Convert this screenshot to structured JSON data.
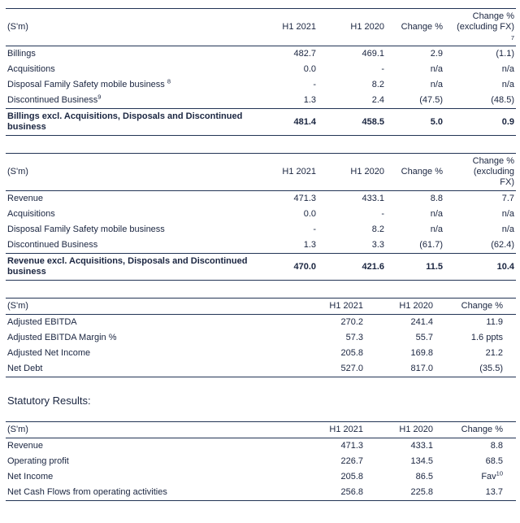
{
  "page": {
    "statutory_heading": "Statutory Results:"
  },
  "colors": {
    "text": "#1a2540",
    "border": "#223455"
  },
  "tables": [
    {
      "name": "billings-table",
      "columns": [
        {
          "lines": [
            "(S'm)"
          ]
        },
        {
          "lines": [
            "H1 2021"
          ]
        },
        {
          "lines": [
            "H1 2020"
          ]
        },
        {
          "lines": [
            "Change %"
          ]
        },
        {
          "lines": [
            "Change %",
            "(excluding FX)",
            "^7"
          ]
        }
      ],
      "rows": [
        {
          "label": "Billings",
          "values": [
            "482.7",
            "469.1",
            "2.9",
            "(1.1)"
          ]
        },
        {
          "label": "Acquisitions",
          "values": [
            "0.0",
            "-",
            "n/a",
            "n/a"
          ]
        },
        {
          "label": "Disposal Family Safety mobile business ^8",
          "values": [
            "-",
            "8.2",
            "n/a",
            "n/a"
          ]
        },
        {
          "label": "Discontinued Business^9",
          "values": [
            "1.3",
            "2.4",
            "(47.5)",
            "(48.5)"
          ]
        },
        {
          "label": "Billings excl. Acquisitions, Disposals and Discontinued business",
          "values": [
            "481.4",
            "458.5",
            "5.0",
            "0.9"
          ],
          "bold": true
        }
      ]
    },
    {
      "name": "revenue-table",
      "columns": [
        {
          "lines": [
            "(S'm)"
          ]
        },
        {
          "lines": [
            "H1 2021"
          ]
        },
        {
          "lines": [
            "H1 2020"
          ]
        },
        {
          "lines": [
            "Change %"
          ]
        },
        {
          "lines": [
            "Change %",
            "(excluding",
            "FX)"
          ]
        }
      ],
      "rows": [
        {
          "label": "Revenue",
          "values": [
            "471.3",
            "433.1",
            "8.8",
            "7.7"
          ]
        },
        {
          "label": "Acquisitions",
          "values": [
            "0.0",
            "-",
            "n/a",
            "n/a"
          ]
        },
        {
          "label": "Disposal Family Safety mobile business",
          "values": [
            "-",
            "8.2",
            "n/a",
            "n/a"
          ]
        },
        {
          "label": "Discontinued Business",
          "values": [
            "1.3",
            "3.3",
            "(61.7)",
            "(62.4)"
          ]
        },
        {
          "label": "Revenue excl. Acquisitions, Disposals and Discontinued business",
          "values": [
            "470.0",
            "421.6",
            "11.5",
            "10.4"
          ],
          "bold": true
        }
      ]
    },
    {
      "name": "adjusted-results-table",
      "columns": [
        {
          "lines": [
            "(S'm)"
          ]
        },
        {
          "lines": [
            "H1 2021"
          ]
        },
        {
          "lines": [
            "H1 2020"
          ]
        },
        {
          "lines": [
            "Change %"
          ]
        }
      ],
      "rows": [
        {
          "label": "Adjusted EBITDA",
          "values": [
            "270.2",
            "241.4",
            "11.9"
          ]
        },
        {
          "label": "Adjusted EBITDA Margin %",
          "values": [
            "57.3",
            "55.7",
            "1.6 ppts"
          ]
        },
        {
          "label": "Adjusted Net Income",
          "values": [
            "205.8",
            "169.8",
            "21.2"
          ]
        },
        {
          "label": "Net Debt",
          "values": [
            "527.0",
            "817.0",
            "(35.5)"
          ]
        }
      ]
    },
    {
      "name": "statutory-results-table",
      "columns": [
        {
          "lines": [
            "(S'm)"
          ]
        },
        {
          "lines": [
            "H1 2021"
          ]
        },
        {
          "lines": [
            "H1 2020"
          ]
        },
        {
          "lines": [
            "Change %"
          ]
        }
      ],
      "rows": [
        {
          "label": "Revenue",
          "values": [
            "471.3",
            "433.1",
            "8.8"
          ]
        },
        {
          "label": "Operating profit",
          "values": [
            "226.7",
            "134.5",
            "68.5"
          ]
        },
        {
          "label": "Net Income",
          "values": [
            "205.8",
            "86.5",
            "Fav^10"
          ]
        },
        {
          "label": "Net Cash Flows from operating activities",
          "values": [
            "256.8",
            "225.8",
            "13.7"
          ]
        }
      ]
    }
  ]
}
